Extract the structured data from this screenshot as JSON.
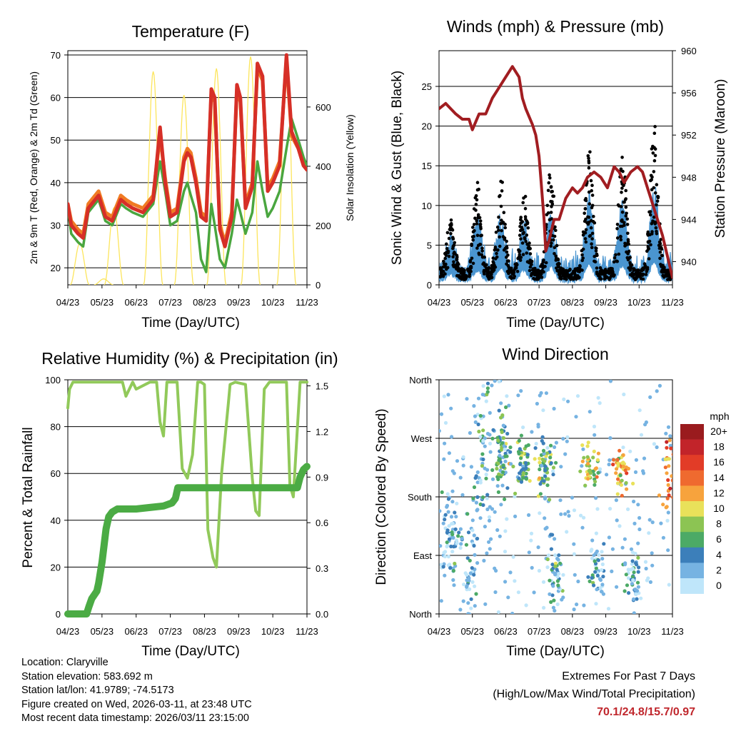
{
  "colors": {
    "temp2m": "#d62f27",
    "temp9m": "#f07b23",
    "dewpoint": "#4aa63f",
    "solar": "#fce55c",
    "wind": "#4a95d0",
    "gust": "#000000",
    "pressure": "#a11d21",
    "rh": "#91c95a",
    "precip": "#4bab44",
    "extremes": "#c0272d"
  },
  "chart_data": [
    {
      "type": "line",
      "title": "Temperature (F)",
      "xlabel": "Time (Day/UTC)",
      "ylabel": "2m & 9m T (Red, Orange) & 2m Td (Green)",
      "y2label": "Solar Insolation (Yellow)",
      "x_tick_labels": [
        "04/23",
        "05/23",
        "06/23",
        "07/23",
        "08/23",
        "09/23",
        "10/23",
        "11/23"
      ],
      "ylim": [
        16,
        71
      ],
      "yticks": [
        "20",
        "30",
        "40",
        "50",
        "60",
        "70"
      ],
      "ytick_values": [
        20,
        30,
        40,
        50,
        60,
        70
      ],
      "y2lim": [
        0,
        790
      ],
      "y2ticks": [
        "0",
        "200",
        "400",
        "600"
      ],
      "y2tick_values": [
        0,
        200,
        400,
        600
      ],
      "xlim": [
        0,
        7
      ],
      "series": [
        {
          "name": "2m T",
          "color": "#d62f27",
          "x": [
            0,
            0.1,
            0.3,
            0.45,
            0.6,
            0.9,
            1.1,
            1.3,
            1.55,
            1.7,
            1.9,
            2.2,
            2.5,
            2.7,
            2.85,
            3.0,
            3.2,
            3.4,
            3.5,
            3.6,
            3.75,
            3.9,
            4.05,
            4.2,
            4.3,
            4.45,
            4.6,
            4.8,
            4.95,
            5.05,
            5.2,
            5.4,
            5.55,
            5.7,
            5.85,
            6.0,
            6.2,
            6.4,
            6.55,
            6.75,
            6.9,
            7.0
          ],
          "values": [
            35,
            30,
            28,
            27,
            34,
            37,
            32,
            31,
            36,
            35,
            34,
            33,
            36,
            53,
            40,
            32,
            33,
            45,
            47,
            46,
            40,
            32,
            31,
            62,
            60,
            29,
            25,
            32,
            63,
            60,
            34,
            39,
            68,
            65,
            38,
            40,
            44,
            70,
            52,
            48,
            44,
            43
          ]
        },
        {
          "name": "9m T",
          "color": "#f07b23",
          "x": [
            0,
            0.1,
            0.3,
            0.45,
            0.6,
            0.9,
            1.1,
            1.3,
            1.55,
            1.7,
            1.9,
            2.2,
            2.5,
            2.7,
            2.85,
            3.0,
            3.2,
            3.4,
            3.5,
            3.6,
            3.75,
            3.9,
            4.05,
            4.2,
            4.3,
            4.45,
            4.6,
            4.8,
            4.95,
            5.05,
            5.2,
            5.4,
            5.55,
            5.7,
            5.85,
            6.0,
            6.2,
            6.4,
            6.55,
            6.75,
            6.9,
            7.0
          ],
          "values": [
            35,
            31,
            29,
            28,
            35,
            38,
            33,
            32,
            37,
            36,
            35,
            34,
            37,
            51,
            41,
            33,
            34,
            46,
            48,
            47,
            41,
            33,
            32,
            61,
            59,
            30,
            26,
            33,
            62,
            59,
            35,
            40,
            67,
            64,
            39,
            41,
            45,
            69,
            51,
            48,
            44,
            43
          ]
        },
        {
          "name": "2m Td",
          "color": "#4aa63f",
          "x": [
            0,
            0.1,
            0.3,
            0.45,
            0.6,
            0.9,
            1.1,
            1.3,
            1.55,
            1.7,
            1.9,
            2.2,
            2.5,
            2.7,
            2.85,
            3.0,
            3.2,
            3.4,
            3.5,
            3.6,
            3.75,
            3.9,
            4.05,
            4.2,
            4.3,
            4.45,
            4.6,
            4.8,
            4.95,
            5.05,
            5.2,
            5.4,
            5.55,
            5.7,
            5.85,
            6.0,
            6.2,
            6.4,
            6.55,
            6.75,
            6.9,
            7.0
          ],
          "values": [
            34,
            28,
            26,
            25,
            33,
            36,
            31,
            30,
            35,
            34,
            33,
            32,
            35,
            45,
            38,
            30,
            31,
            38,
            40,
            37,
            33,
            22,
            19,
            35,
            30,
            22,
            20,
            28,
            36,
            33,
            28,
            33,
            45,
            38,
            32,
            34,
            38,
            48,
            55,
            50,
            46,
            44
          ]
        },
        {
          "name": "Solar Insolation",
          "color": "#fce55c",
          "axis": "y2",
          "peaks": [
            {
              "x": 0.35,
              "y": 140
            },
            {
              "x": 1.05,
              "y": 20
            },
            {
              "x": 1.35,
              "y": 260
            },
            {
              "x": 2.5,
              "y": 720
            },
            {
              "x": 3.4,
              "y": 640
            },
            {
              "x": 4.35,
              "y": 730
            },
            {
              "x": 5.35,
              "y": 770
            },
            {
              "x": 6.4,
              "y": 780
            }
          ]
        }
      ]
    },
    {
      "type": "line",
      "title": "Winds (mph) & Pressure (mb)",
      "xlabel": "Time (Day/UTC)",
      "ylabel": "Sonic Wind & Gust (Blue, Black)",
      "y2label": "Station Pressure (Maroon)",
      "x_tick_labels": [
        "04/23",
        "05/23",
        "06/23",
        "07/23",
        "08/23",
        "09/23",
        "10/23",
        "11/23"
      ],
      "ylim": [
        0,
        29.5
      ],
      "yticks": [
        "0",
        "5",
        "10",
        "15",
        "20",
        "25"
      ],
      "ytick_values": [
        0,
        5,
        10,
        15,
        20,
        25
      ],
      "y2lim": [
        937.8,
        960
      ],
      "y2ticks": [
        "940",
        "944",
        "948",
        "952",
        "956",
        "960"
      ],
      "y2tick_values": [
        940,
        944,
        948,
        952,
        956,
        960
      ],
      "xlim": [
        0,
        7
      ],
      "series": [
        {
          "name": "Station Pressure",
          "color": "#a11d21",
          "axis": "y2",
          "x": [
            0,
            0.2,
            0.5,
            0.7,
            0.9,
            1.0,
            1.2,
            1.4,
            1.6,
            1.8,
            2.0,
            2.2,
            2.4,
            2.5,
            2.6,
            2.8,
            2.9,
            3.0,
            3.05,
            3.15,
            3.2,
            3.3,
            3.45,
            3.6,
            3.8,
            4.0,
            4.15,
            4.3,
            4.45,
            4.65,
            4.85,
            5.05,
            5.25,
            5.4,
            5.55,
            5.75,
            5.95,
            6.1,
            6.25,
            6.4,
            6.55,
            6.7,
            6.85,
            7.0
          ],
          "values": [
            954.5,
            955,
            954,
            953.5,
            953.5,
            952.5,
            954,
            954,
            955.5,
            956.5,
            957.5,
            958.5,
            957.5,
            955.5,
            954.5,
            953,
            952,
            950,
            948,
            944,
            941,
            942,
            944,
            944,
            946,
            947,
            946.5,
            947,
            948,
            948.5,
            948,
            947,
            949,
            948.5,
            947.5,
            948.5,
            949,
            948.5,
            947,
            945.5,
            944,
            942.5,
            940.5,
            938.5
          ]
        },
        {
          "name": "Sonic Wind",
          "color": "#4a95d0",
          "style": "dots"
        },
        {
          "name": "Gust",
          "color": "#000000",
          "style": "dots"
        }
      ]
    },
    {
      "type": "line",
      "title": "Relative Humidity (%) & Precipitation (in)",
      "xlabel": "Time (Day/UTC)",
      "ylabel": "Percent & Total Rainfall",
      "x_tick_labels": [
        "04/23",
        "05/23",
        "06/23",
        "07/23",
        "08/23",
        "09/23",
        "10/23",
        "11/23"
      ],
      "ylim": [
        0,
        100
      ],
      "yticks": [
        "0",
        "20",
        "40",
        "60",
        "80",
        "100"
      ],
      "ytick_values": [
        0,
        20,
        40,
        60,
        80,
        100
      ],
      "y2lim": [
        0,
        1.54
      ],
      "y2ticks": [
        "0.0",
        "0.3",
        "0.6",
        "0.9",
        "1.2",
        "1.5"
      ],
      "y2tick_values": [
        0,
        0.3,
        0.6,
        0.9,
        1.2,
        1.5
      ],
      "xlim": [
        0,
        7
      ],
      "series": [
        {
          "name": "Relative Humidity",
          "color": "#91c95a",
          "x": [
            0,
            0.05,
            0.15,
            0.4,
            0.6,
            1.0,
            1.4,
            1.6,
            1.7,
            1.9,
            2.0,
            2.4,
            2.6,
            2.7,
            2.8,
            2.9,
            3.2,
            3.35,
            3.5,
            3.65,
            3.8,
            3.9,
            4.0,
            4.1,
            4.25,
            4.35,
            4.5,
            4.7,
            4.75,
            4.9,
            5.2,
            5.4,
            5.5,
            5.6,
            5.75,
            5.9,
            6.2,
            6.4,
            6.5,
            6.6,
            6.8,
            7.0
          ],
          "values": [
            88,
            96,
            99,
            99,
            99,
            99,
            99,
            99,
            93,
            99,
            96,
            99,
            99,
            82,
            76,
            99,
            99,
            62,
            58,
            68,
            99,
            99,
            98,
            36,
            24,
            20,
            60,
            90,
            98,
            99,
            98,
            58,
            44,
            42,
            96,
            99,
            99,
            99,
            55,
            50,
            99,
            99
          ]
        },
        {
          "name": "Total Precipitation",
          "color": "#4bab44",
          "axis": "y2",
          "x": [
            0,
            0.55,
            0.62,
            0.7,
            0.85,
            0.9,
            1.0,
            1.12,
            1.2,
            1.3,
            1.45,
            1.6,
            2.0,
            2.4,
            2.8,
            3.05,
            3.15,
            3.22,
            3.6,
            4.0,
            5.0,
            6.0,
            6.72,
            6.8,
            6.9,
            7.0
          ],
          "values": [
            0,
            0,
            0.05,
            0.1,
            0.15,
            0.2,
            0.34,
            0.56,
            0.64,
            0.67,
            0.69,
            0.69,
            0.69,
            0.7,
            0.71,
            0.73,
            0.76,
            0.83,
            0.83,
            0.83,
            0.83,
            0.83,
            0.83,
            0.9,
            0.95,
            0.97
          ]
        }
      ]
    },
    {
      "type": "scatter",
      "title": "Wind Direction",
      "xlabel": "Time (Day/UTC)",
      "ylabel": "Direction (Colored By Speed)",
      "x_tick_labels": [
        "04/23",
        "05/23",
        "06/23",
        "07/23",
        "08/23",
        "09/23",
        "10/23",
        "11/23"
      ],
      "ylim": [
        0,
        360
      ],
      "yticks": [
        "North",
        "East",
        "South",
        "West",
        "North"
      ],
      "ytick_values": [
        0,
        90,
        180,
        270,
        360
      ],
      "xlim": [
        0,
        7
      ],
      "clusters": [
        {
          "x": 0.35,
          "dir": 110,
          "spread": 35,
          "speed": 2,
          "n": 60
        },
        {
          "x": 0.9,
          "dir": 70,
          "spread": 45,
          "speed": 2,
          "n": 45
        },
        {
          "x": 1.3,
          "dir": 250,
          "spread": 55,
          "speed": 3,
          "n": 50
        },
        {
          "x": 1.9,
          "dir": 245,
          "spread": 30,
          "speed": 5,
          "n": 70
        },
        {
          "x": 2.5,
          "dir": 225,
          "spread": 20,
          "speed": 6,
          "n": 55
        },
        {
          "x": 3.2,
          "dir": 225,
          "spread": 20,
          "speed": 6,
          "n": 55
        },
        {
          "x": 3.5,
          "dir": 60,
          "spread": 30,
          "speed": 3,
          "n": 45
        },
        {
          "x": 4.55,
          "dir": 225,
          "spread": 15,
          "speed": 10,
          "n": 40
        },
        {
          "x": 4.8,
          "dir": 65,
          "spread": 25,
          "speed": 3,
          "n": 40
        },
        {
          "x": 5.5,
          "dir": 220,
          "spread": 15,
          "speed": 11,
          "n": 40
        },
        {
          "x": 5.8,
          "dir": 60,
          "spread": 20,
          "speed": 3,
          "n": 45
        },
        {
          "x": 6.9,
          "dir": 220,
          "spread": 30,
          "speed": 14,
          "n": 30
        }
      ],
      "colorbar": {
        "title": "mph",
        "labels": [
          "20+",
          "18",
          "16",
          "14",
          "12",
          "10",
          "8",
          "6",
          "4",
          "2",
          "0"
        ],
        "colors": [
          "#9a1b1e",
          "#c2242a",
          "#e23c27",
          "#ef6a2f",
          "#f7a33d",
          "#e9e15a",
          "#8cc453",
          "#4caa66",
          "#3c7fba",
          "#76b3e2",
          "#bfe6fa"
        ]
      }
    }
  ],
  "station_info": {
    "location": "Location: Claryville",
    "elevation": "Station elevation: 583.692 m",
    "latlon": "Station lat/lon: 41.9789; -74.5173",
    "created": "Figure created on Wed, 2026-03-11, at 23:48 UTC",
    "recent": "Most recent data timestamp: 2026/03/11 23:15:00"
  },
  "extremes": {
    "heading": "Extremes For Past 7 Days",
    "subheading": "(High/Low/Max Wind/Total Precipitation)",
    "values": "70.1/24.8/15.7/0.97"
  }
}
